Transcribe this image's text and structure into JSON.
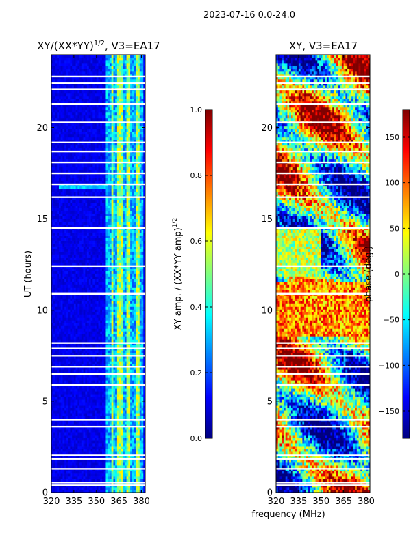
{
  "suptitle": "2023-07-16 0.0-24.0",
  "chart_data": [
    {
      "type": "heatmap",
      "title_main": "XY/(XX*YY)",
      "title_sup": "1/2",
      "title_suffix": ", V3=EA17",
      "xlabel": "",
      "ylabel": "UT (hours)",
      "xlim": [
        320,
        382.5
      ],
      "ylim": [
        0,
        24
      ],
      "xticks": [
        320,
        335,
        350,
        365,
        380
      ],
      "yticks": [
        0,
        5,
        10,
        15,
        20
      ],
      "colorbar": {
        "label_main": "XY amp. / (XX*YY amp)",
        "label_sup": "1/2",
        "range": [
          0.0,
          1.0
        ],
        "ticks": [
          "0.0",
          "0.2",
          "0.4",
          "0.6",
          "0.8",
          "1.0"
        ],
        "tick_values": [
          0,
          0.2,
          0.4,
          0.6,
          0.8,
          1.0
        ],
        "colormap": "jet"
      },
      "bright_freq_ranges_mhz": [
        [
          359.5,
          361
        ],
        [
          364,
          367.5
        ],
        [
          370,
          373
        ],
        [
          376,
          379
        ]
      ],
      "gap_rows_hours": [
        0.4,
        0.55,
        1.3,
        1.85,
        2.05,
        3.6,
        4.0,
        5.9,
        6.5,
        6.9,
        7.5,
        7.9,
        8.2,
        10.9,
        12.4,
        14.5,
        16.2,
        16.9,
        17.5,
        18.1,
        18.7,
        19.2,
        20.3,
        21.3,
        22.1,
        22.45,
        22.8
      ]
    },
    {
      "type": "heatmap",
      "title_main": "XY, V3=EA17",
      "xlabel": "frequency (MHz)",
      "ylabel": "",
      "xlim": [
        320,
        382.5
      ],
      "ylim": [
        0,
        24
      ],
      "xticks": [
        320,
        335,
        350,
        365,
        380
      ],
      "yticks": [
        0,
        5,
        10,
        15,
        20
      ],
      "colorbar": {
        "label_main": "phase (deg.)",
        "range": [
          -180,
          180
        ],
        "ticks": [
          "−150",
          "−100",
          "−50",
          "0",
          "50",
          "100",
          "150"
        ],
        "tick_values": [
          -150,
          -100,
          -50,
          0,
          50,
          100,
          150
        ],
        "colormap": "jet"
      },
      "gap_rows_hours": [
        0.4,
        0.55,
        1.3,
        1.85,
        2.05,
        3.6,
        4.0,
        5.9,
        6.5,
        6.9,
        7.5,
        7.9,
        8.2,
        10.9,
        12.4,
        14.5,
        16.2,
        16.9,
        17.5,
        18.1,
        18.7,
        19.2,
        20.3,
        21.3,
        22.1,
        22.45,
        22.8
      ]
    }
  ],
  "palette": {
    "jet_stops": [
      "#00007f",
      "#0000ff",
      "#007fff",
      "#00ffff",
      "#7fff7f",
      "#ffff00",
      "#ff7f00",
      "#ff0000",
      "#7f0000"
    ]
  }
}
